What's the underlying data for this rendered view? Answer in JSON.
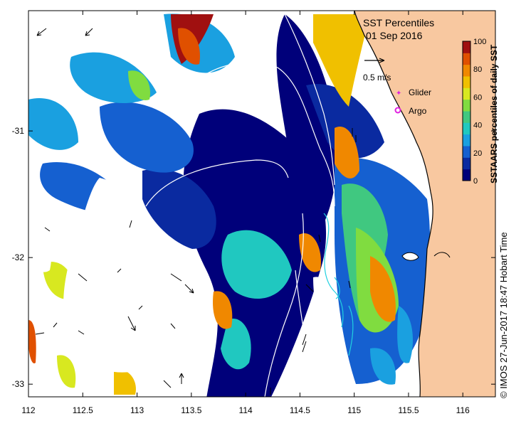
{
  "title": {
    "line1": "SST Percentiles",
    "line2": "01 Sep 2016"
  },
  "legend": {
    "vector_scale_label": "0.5 m/s",
    "glider_label": "Glider",
    "argo_label": "Argo",
    "glider_color": "#e020e0",
    "argo_color": "#e020e0"
  },
  "colorbar": {
    "label": "SSTAARS percentiles of daily SST",
    "ticks": [
      "0",
      "20",
      "40",
      "60",
      "80",
      "100"
    ],
    "colors": [
      "#00007a",
      "#0a2aa0",
      "#1560d0",
      "#1aa0e0",
      "#20c8c0",
      "#40c880",
      "#80dc40",
      "#d8e820",
      "#f0c000",
      "#f08800",
      "#e05000",
      "#a01010"
    ]
  },
  "axes": {
    "x_ticks": [
      "112",
      "112.5",
      "113",
      "113.5",
      "114",
      "114.5",
      "115",
      "115.5",
      "116"
    ],
    "y_ticks": [
      "-31",
      "-32",
      "-33"
    ],
    "x_range": [
      112,
      116.3
    ],
    "y_range": [
      -33.1,
      -30.05
    ]
  },
  "colors": {
    "land": "#f8c8a0",
    "coast": "#000000",
    "isobath": "#ffffff",
    "cyan_contour": "#20d0e0"
  },
  "credit": "© IMOS 27-Jun-2017 18:47 Hobart Time"
}
